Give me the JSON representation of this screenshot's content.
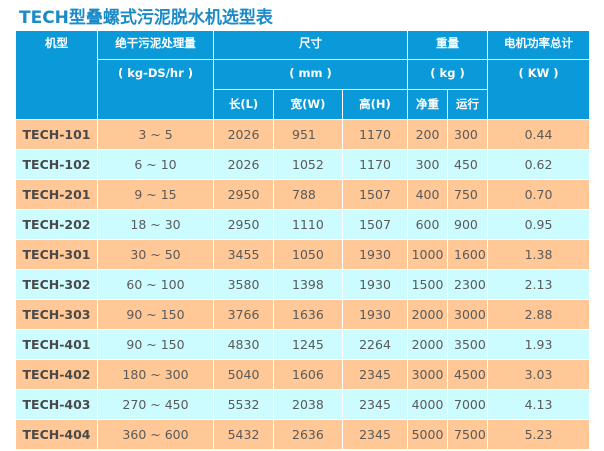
{
  "title": "TECH型叠螺式污泥脱水机选型表",
  "colors": {
    "title": "#1b8bc8",
    "header_bg": "#0b9ad9",
    "row_odd_bg": "#ffc896",
    "row_even_bg": "#ccfcff"
  },
  "header": {
    "model": "机型",
    "capacity": "绝干污泥处理量",
    "capacity_unit": "( kg-DS/hr )",
    "size": "尺寸",
    "size_unit": "( mm )",
    "size_length": "长(L)",
    "size_width": "宽(W)",
    "size_height": "高(H)",
    "weight": "重量",
    "weight_unit": "( kg )",
    "weight_net": "净重",
    "weight_run": "运行",
    "power": "电机功率总计",
    "power_unit": "( KW )"
  },
  "rows": [
    {
      "model": "TECH-101",
      "capacity": "3 ~ 5",
      "length": "2026",
      "width": "951",
      "height": "1170",
      "net": "200",
      "run": "300",
      "power": "0.44"
    },
    {
      "model": "TECH-102",
      "capacity": "6 ~ 10",
      "length": "2026",
      "width": "1052",
      "height": "1170",
      "net": "300",
      "run": "450",
      "power": "0.62"
    },
    {
      "model": "TECH-201",
      "capacity": "9 ~ 15",
      "length": "2950",
      "width": "788",
      "height": "1507",
      "net": "400",
      "run": "750",
      "power": "0.70"
    },
    {
      "model": "TECH-202",
      "capacity": "18 ~ 30",
      "length": "2950",
      "width": "1110",
      "height": "1507",
      "net": "600",
      "run": "900",
      "power": "0.95"
    },
    {
      "model": "TECH-301",
      "capacity": "30 ~ 50",
      "length": "3455",
      "width": "1050",
      "height": "1930",
      "net": "1000",
      "run": "1600",
      "power": "1.38"
    },
    {
      "model": "TECH-302",
      "capacity": "60 ~ 100",
      "length": "3580",
      "width": "1398",
      "height": "1930",
      "net": "1500",
      "run": "2300",
      "power": "2.13"
    },
    {
      "model": "TECH-303",
      "capacity": "90 ~ 150",
      "length": "3766",
      "width": "1636",
      "height": "1930",
      "net": "2000",
      "run": "3000",
      "power": "2.88"
    },
    {
      "model": "TECH-401",
      "capacity": "90 ~ 150",
      "length": "4830",
      "width": "1245",
      "height": "2264",
      "net": "2000",
      "run": "3500",
      "power": "1.93"
    },
    {
      "model": "TECH-402",
      "capacity": "180 ~ 300",
      "length": "5040",
      "width": "1606",
      "height": "2345",
      "net": "3000",
      "run": "4500",
      "power": "3.03"
    },
    {
      "model": "TECH-403",
      "capacity": "270 ~ 450",
      "length": "5532",
      "width": "2038",
      "height": "2345",
      "net": "4000",
      "run": "7000",
      "power": "4.13"
    },
    {
      "model": "TECH-404",
      "capacity": "360 ~ 600",
      "length": "5432",
      "width": "2636",
      "height": "2345",
      "net": "5000",
      "run": "7500",
      "power": "5.23"
    }
  ]
}
